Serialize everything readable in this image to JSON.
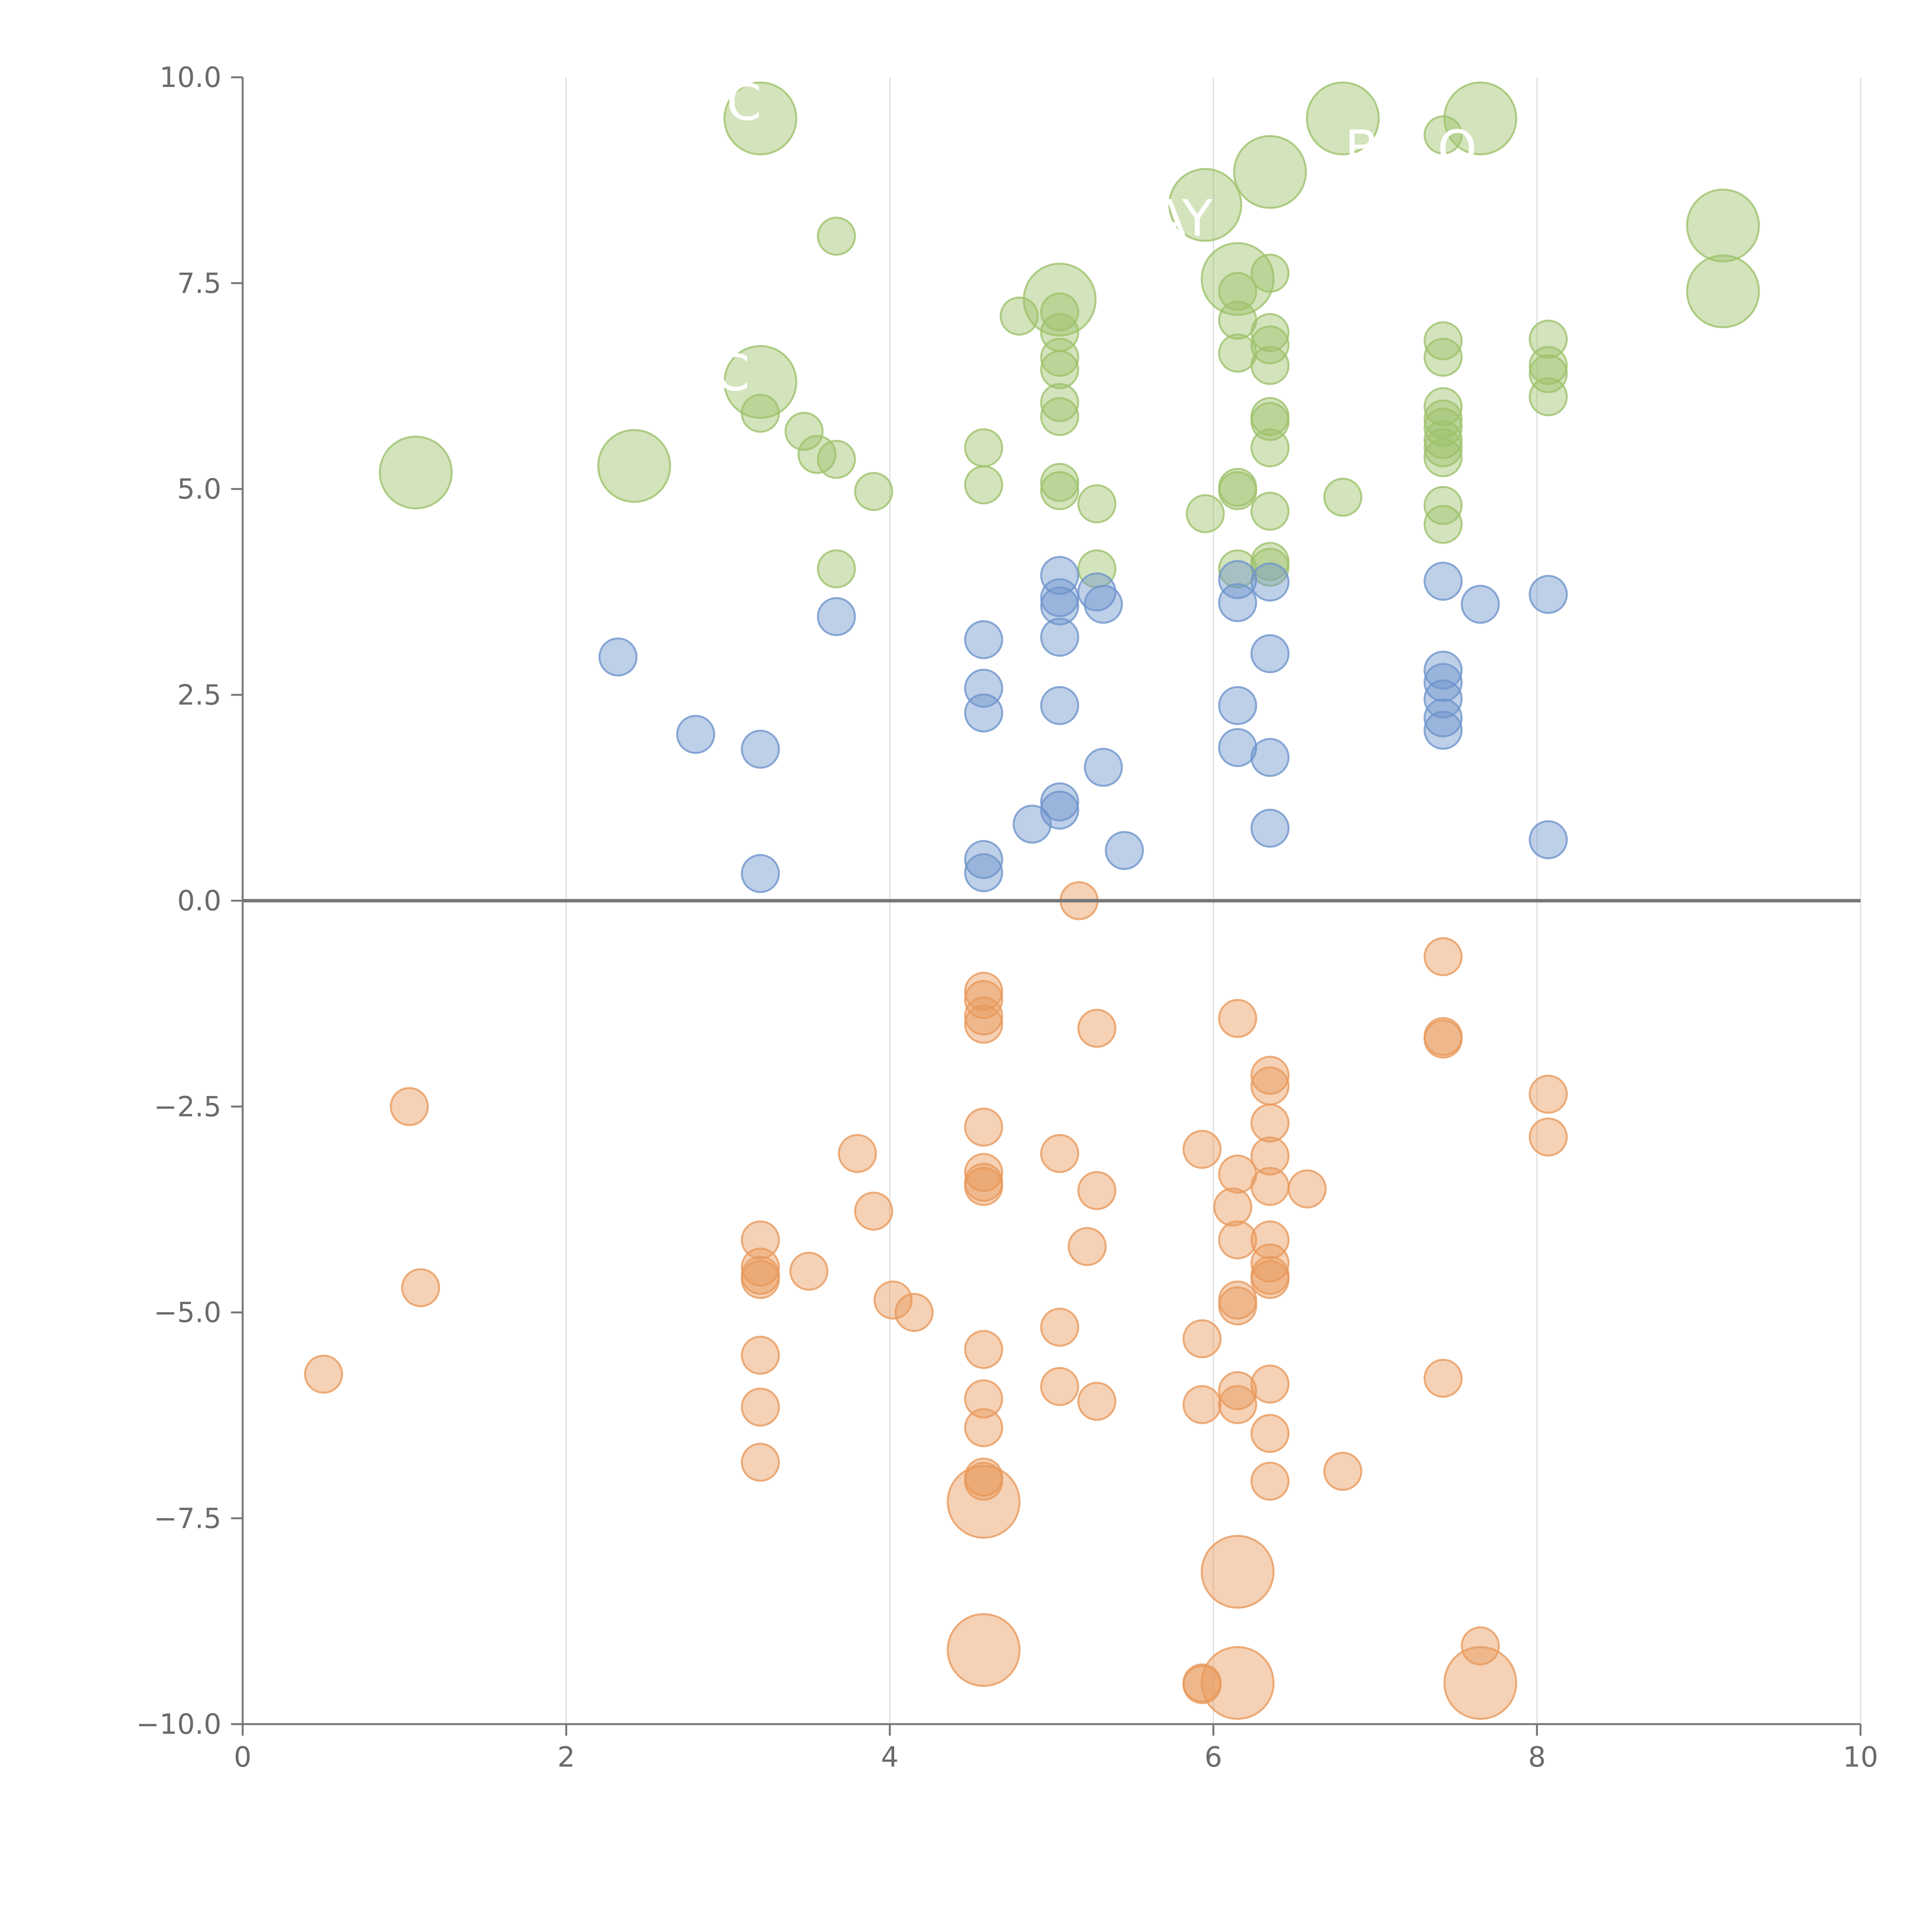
{
  "chart_data": {
    "type": "scatter",
    "title": "",
    "xlabel": "",
    "ylabel": "",
    "xlim": [
      0,
      10
    ],
    "ylim": [
      -10,
      10
    ],
    "grid": "vertical lines at major x ticks",
    "x_ticks": [
      "0",
      "2",
      "4",
      "6",
      "8",
      "10"
    ],
    "y_ticks": [
      "10.0",
      "7.5",
      "5.0",
      "2.5",
      "0.0",
      "−2.5",
      "−5.0",
      "−7.5",
      "−10.0"
    ],
    "colors": {
      "green": "#9dc26b",
      "blue": "#6f95cc",
      "orange": "#e99a5c",
      "axis": "#777777",
      "grid": "#dddddd"
    },
    "annotations": [
      "C",
      "AY",
      "B",
      "O",
      "C"
    ],
    "series": [
      {
        "name": "green",
        "color": "#9dc26b",
        "points": [
          {
            "x": 3.2,
            "y": 9.5,
            "big": true
          },
          {
            "x": 6.8,
            "y": 9.5,
            "big": true
          },
          {
            "x": 7.65,
            "y": 9.5,
            "big": true
          },
          {
            "x": 6.35,
            "y": 8.85,
            "big": true
          },
          {
            "x": 5.95,
            "y": 8.45,
            "big": true
          },
          {
            "x": 9.15,
            "y": 8.2,
            "big": true
          },
          {
            "x": 9.15,
            "y": 7.4,
            "big": true
          },
          {
            "x": 6.15,
            "y": 7.55,
            "big": true
          },
          {
            "x": 5.05,
            "y": 7.3,
            "big": true
          },
          {
            "x": 3.2,
            "y": 6.3,
            "big": true
          },
          {
            "x": 1.07,
            "y": 5.2,
            "big": true
          },
          {
            "x": 2.42,
            "y": 5.28,
            "big": true
          },
          {
            "x": 7.42,
            "y": 9.3
          },
          {
            "x": 3.67,
            "y": 8.07
          },
          {
            "x": 6.35,
            "y": 7.62
          },
          {
            "x": 6.15,
            "y": 7.4
          },
          {
            "x": 4.8,
            "y": 7.1
          },
          {
            "x": 5.05,
            "y": 7.15
          },
          {
            "x": 6.15,
            "y": 7.05
          },
          {
            "x": 5.05,
            "y": 6.9
          },
          {
            "x": 6.35,
            "y": 6.9
          },
          {
            "x": 6.35,
            "y": 6.75
          },
          {
            "x": 7.42,
            "y": 6.8
          },
          {
            "x": 8.07,
            "y": 6.82
          },
          {
            "x": 6.15,
            "y": 6.65
          },
          {
            "x": 5.05,
            "y": 6.6
          },
          {
            "x": 7.42,
            "y": 6.6
          },
          {
            "x": 6.35,
            "y": 6.5
          },
          {
            "x": 5.05,
            "y": 6.45
          },
          {
            "x": 8.07,
            "y": 6.5
          },
          {
            "x": 8.07,
            "y": 6.4
          },
          {
            "x": 8.07,
            "y": 6.12
          },
          {
            "x": 5.05,
            "y": 6.05
          },
          {
            "x": 7.42,
            "y": 6.0
          },
          {
            "x": 3.2,
            "y": 5.92
          },
          {
            "x": 5.05,
            "y": 5.88
          },
          {
            "x": 6.35,
            "y": 5.88
          },
          {
            "x": 6.35,
            "y": 5.82
          },
          {
            "x": 7.42,
            "y": 5.85
          },
          {
            "x": 7.42,
            "y": 5.75
          },
          {
            "x": 3.47,
            "y": 5.7
          },
          {
            "x": 7.42,
            "y": 5.6
          },
          {
            "x": 7.42,
            "y": 5.5
          },
          {
            "x": 4.58,
            "y": 5.5
          },
          {
            "x": 6.35,
            "y": 5.5
          },
          {
            "x": 3.55,
            "y": 5.42
          },
          {
            "x": 7.42,
            "y": 5.38
          },
          {
            "x": 3.67,
            "y": 5.36
          },
          {
            "x": 4.58,
            "y": 5.05
          },
          {
            "x": 5.05,
            "y": 5.08
          },
          {
            "x": 6.15,
            "y": 5.02
          },
          {
            "x": 6.15,
            "y": 4.98
          },
          {
            "x": 5.05,
            "y": 4.98
          },
          {
            "x": 3.9,
            "y": 4.97
          },
          {
            "x": 6.8,
            "y": 4.9
          },
          {
            "x": 5.28,
            "y": 4.82
          },
          {
            "x": 7.42,
            "y": 4.8
          },
          {
            "x": 6.35,
            "y": 4.73
          },
          {
            "x": 5.95,
            "y": 4.7
          },
          {
            "x": 7.42,
            "y": 4.57
          },
          {
            "x": 6.35,
            "y": 4.12
          },
          {
            "x": 6.35,
            "y": 4.05
          },
          {
            "x": 3.67,
            "y": 4.03
          },
          {
            "x": 5.28,
            "y": 4.03
          },
          {
            "x": 6.15,
            "y": 4.03
          }
        ]
      },
      {
        "name": "blue",
        "color": "#6f95cc",
        "points": [
          {
            "x": 5.05,
            "y": 3.95
          },
          {
            "x": 6.15,
            "y": 3.9
          },
          {
            "x": 6.35,
            "y": 3.87
          },
          {
            "x": 7.42,
            "y": 3.88
          },
          {
            "x": 5.28,
            "y": 3.75
          },
          {
            "x": 8.07,
            "y": 3.72
          },
          {
            "x": 5.05,
            "y": 3.68
          },
          {
            "x": 6.15,
            "y": 3.62
          },
          {
            "x": 7.65,
            "y": 3.6
          },
          {
            "x": 5.05,
            "y": 3.58
          },
          {
            "x": 5.32,
            "y": 3.6
          },
          {
            "x": 3.67,
            "y": 3.45
          },
          {
            "x": 5.05,
            "y": 3.2
          },
          {
            "x": 4.58,
            "y": 3.17
          },
          {
            "x": 6.35,
            "y": 3.0
          },
          {
            "x": 2.32,
            "y": 2.96
          },
          {
            "x": 7.42,
            "y": 2.8
          },
          {
            "x": 7.42,
            "y": 2.65
          },
          {
            "x": 4.58,
            "y": 2.58
          },
          {
            "x": 7.42,
            "y": 2.45
          },
          {
            "x": 5.05,
            "y": 2.37
          },
          {
            "x": 6.15,
            "y": 2.37
          },
          {
            "x": 4.58,
            "y": 2.28
          },
          {
            "x": 7.42,
            "y": 2.22
          },
          {
            "x": 7.42,
            "y": 2.07
          },
          {
            "x": 2.8,
            "y": 2.02
          },
          {
            "x": 6.15,
            "y": 1.86
          },
          {
            "x": 3.2,
            "y": 1.84
          },
          {
            "x": 6.35,
            "y": 1.74
          },
          {
            "x": 5.32,
            "y": 1.62
          },
          {
            "x": 5.05,
            "y": 1.2
          },
          {
            "x": 5.05,
            "y": 1.1
          },
          {
            "x": 4.88,
            "y": 0.93
          },
          {
            "x": 6.35,
            "y": 0.88
          },
          {
            "x": 8.07,
            "y": 0.74
          },
          {
            "x": 5.45,
            "y": 0.61
          },
          {
            "x": 4.58,
            "y": 0.5
          },
          {
            "x": 4.58,
            "y": 0.34
          },
          {
            "x": 3.2,
            "y": 0.33
          }
        ]
      },
      {
        "name": "orange",
        "color": "#e99a5c",
        "points": [
          {
            "x": 5.17,
            "y": 0.0
          },
          {
            "x": 7.42,
            "y": -0.68
          },
          {
            "x": 4.58,
            "y": -1.1
          },
          {
            "x": 4.58,
            "y": -1.2
          },
          {
            "x": 6.15,
            "y": -1.43
          },
          {
            "x": 4.58,
            "y": -1.4
          },
          {
            "x": 4.58,
            "y": -1.5
          },
          {
            "x": 5.28,
            "y": -1.55
          },
          {
            "x": 7.42,
            "y": -1.65
          },
          {
            "x": 7.42,
            "y": -1.68
          },
          {
            "x": 6.35,
            "y": -2.12
          },
          {
            "x": 6.35,
            "y": -2.25
          },
          {
            "x": 8.07,
            "y": -2.35
          },
          {
            "x": 1.03,
            "y": -2.5
          },
          {
            "x": 6.35,
            "y": -2.7
          },
          {
            "x": 4.58,
            "y": -2.75
          },
          {
            "x": 8.07,
            "y": -2.87
          },
          {
            "x": 5.93,
            "y": -3.02
          },
          {
            "x": 3.8,
            "y": -3.07
          },
          {
            "x": 5.05,
            "y": -3.07
          },
          {
            "x": 6.35,
            "y": -3.1
          },
          {
            "x": 6.15,
            "y": -3.32
          },
          {
            "x": 4.58,
            "y": -3.3
          },
          {
            "x": 4.58,
            "y": -3.42
          },
          {
            "x": 4.58,
            "y": -3.47
          },
          {
            "x": 6.35,
            "y": -3.47
          },
          {
            "x": 6.58,
            "y": -3.5
          },
          {
            "x": 5.28,
            "y": -3.52
          },
          {
            "x": 6.12,
            "y": -3.72
          },
          {
            "x": 3.9,
            "y": -3.77
          },
          {
            "x": 6.35,
            "y": -4.12
          },
          {
            "x": 6.15,
            "y": -4.12
          },
          {
            "x": 3.2,
            "y": -4.12
          },
          {
            "x": 5.22,
            "y": -4.2
          },
          {
            "x": 6.35,
            "y": -4.4
          },
          {
            "x": 3.2,
            "y": -4.45
          },
          {
            "x": 3.2,
            "y": -4.55
          },
          {
            "x": 6.35,
            "y": -4.55
          },
          {
            "x": 3.2,
            "y": -4.6
          },
          {
            "x": 3.5,
            "y": -4.5
          },
          {
            "x": 6.35,
            "y": -4.6
          },
          {
            "x": 1.1,
            "y": -4.7
          },
          {
            "x": 6.15,
            "y": -4.85
          },
          {
            "x": 4.02,
            "y": -4.85
          },
          {
            "x": 6.15,
            "y": -4.92
          },
          {
            "x": 4.15,
            "y": -5.0
          },
          {
            "x": 5.05,
            "y": -5.18
          },
          {
            "x": 5.93,
            "y": -5.32
          },
          {
            "x": 4.58,
            "y": -5.45
          },
          {
            "x": 3.2,
            "y": -5.52
          },
          {
            "x": 0.5,
            "y": -5.75
          },
          {
            "x": 7.42,
            "y": -5.8
          },
          {
            "x": 6.35,
            "y": -5.87
          },
          {
            "x": 5.05,
            "y": -5.9
          },
          {
            "x": 6.15,
            "y": -5.95
          },
          {
            "x": 4.58,
            "y": -6.05
          },
          {
            "x": 5.28,
            "y": -6.08
          },
          {
            "x": 5.93,
            "y": -6.12
          },
          {
            "x": 6.15,
            "y": -6.12
          },
          {
            "x": 3.2,
            "y": -6.15
          },
          {
            "x": 4.58,
            "y": -6.4
          },
          {
            "x": 6.35,
            "y": -6.47
          },
          {
            "x": 3.2,
            "y": -6.82
          },
          {
            "x": 6.8,
            "y": -6.93
          },
          {
            "x": 4.58,
            "y": -7.0
          },
          {
            "x": 4.58,
            "y": -7.05
          },
          {
            "x": 6.35,
            "y": -7.05
          },
          {
            "x": 7.65,
            "y": -9.05
          },
          {
            "x": 5.93,
            "y": -9.5
          },
          {
            "x": 5.93,
            "y": -9.52
          },
          {
            "x": 4.58,
            "y": -7.3,
            "big": true
          },
          {
            "x": 6.15,
            "y": -8.15,
            "big": true
          },
          {
            "x": 4.58,
            "y": -9.1,
            "big": true
          },
          {
            "x": 6.15,
            "y": -9.5,
            "big": true
          },
          {
            "x": 7.65,
            "y": -9.5,
            "big": true
          }
        ]
      }
    ]
  }
}
